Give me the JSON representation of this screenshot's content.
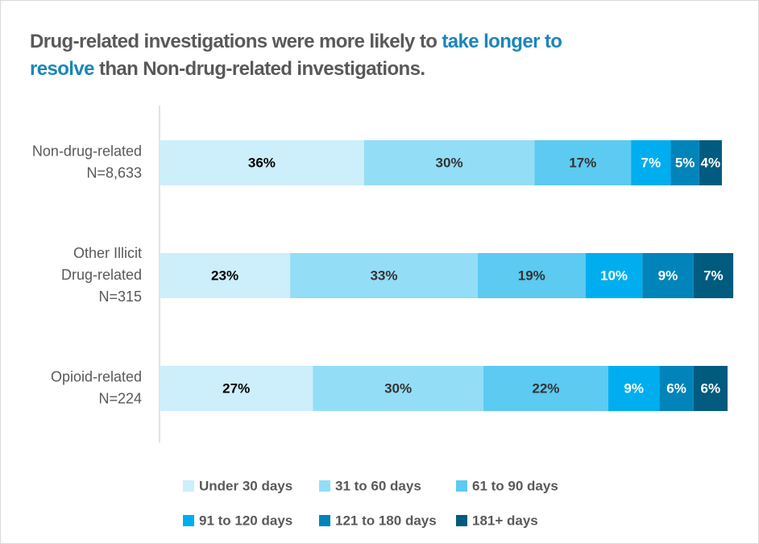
{
  "chart_data": {
    "type": "stacked-bar-horizontal",
    "title": [
      "Drug-related investigations were more likely to",
      "take longer to resolve",
      "than Non-drug-related investigations."
    ],
    "title_highlight_color": "#1a86b8",
    "categories": [
      [
        "Non-drug-related",
        "N=8,633"
      ],
      [
        "Other Illicit",
        "Drug-related",
        "N=315"
      ],
      [
        "Opioid-related",
        "N=224"
      ]
    ],
    "series": [
      {
        "name": "Under 30 days",
        "color": "#cdeefb",
        "label_color": "#000000",
        "values": [
          36,
          23,
          27
        ],
        "value_labels": [
          "36%",
          "23%",
          "27%"
        ]
      },
      {
        "name": "31 to 60 days",
        "color": "#93ddf7",
        "label_color": "#333333",
        "values": [
          30,
          33,
          30
        ],
        "value_labels": [
          "30%",
          "33%",
          "30%"
        ]
      },
      {
        "name": "61 to 90 days",
        "color": "#5ccaf1",
        "label_color": "#333333",
        "values": [
          17,
          19,
          22
        ],
        "value_labels": [
          "17%",
          "19%",
          "22%"
        ]
      },
      {
        "name": "91 to 120 days",
        "color": "#00aeef",
        "label_color": "#ffffff",
        "values": [
          7,
          10,
          9
        ],
        "value_labels": [
          "7%",
          "10%",
          "9%"
        ]
      },
      {
        "name": "121 to 180 days",
        "color": "#0084ba",
        "label_color": "#ffffff",
        "values": [
          5,
          9,
          6
        ],
        "value_labels": [
          "5%",
          "9%",
          "6%"
        ]
      },
      {
        "name": "181+ days",
        "color": "#005b7f",
        "label_color": "#ffffff",
        "values": [
          4,
          7,
          6
        ],
        "value_labels": [
          "4%",
          "7%",
          "6%"
        ]
      }
    ]
  }
}
